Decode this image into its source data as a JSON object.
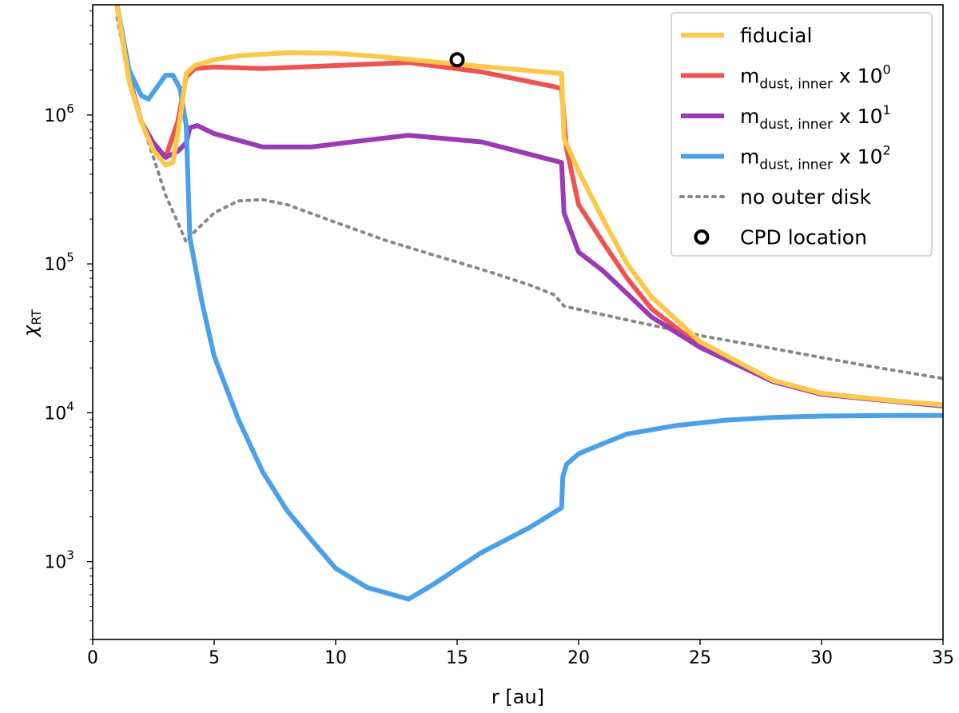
{
  "chart_data": {
    "type": "line",
    "xlabel": "r [au]",
    "ylabel_base": "χ",
    "ylabel_sub": "RT",
    "yscale": "log",
    "xlim": [
      0,
      35
    ],
    "ylim": [
      300,
      5500000
    ],
    "x_ticks": [
      0,
      5,
      10,
      15,
      20,
      25,
      30,
      35
    ],
    "x_tick_labels": [
      "0",
      "5",
      "10",
      "15",
      "20",
      "25",
      "30",
      "35"
    ],
    "y_ticks": [
      {
        "value": 1000,
        "base": "10",
        "exp": "3"
      },
      {
        "value": 10000,
        "base": "10",
        "exp": "4"
      },
      {
        "value": 100000,
        "base": "10",
        "exp": "5"
      },
      {
        "value": 1000000,
        "base": "10",
        "exp": "6"
      }
    ],
    "legend_position": "upper-right",
    "series": [
      {
        "name": "no outer disk",
        "label_main": "no outer disk",
        "color": "#888888",
        "style": "dotted",
        "x": [
          1.0,
          1.5,
          2.0,
          2.5,
          3.0,
          3.5,
          3.85,
          4.2,
          5.0,
          6.0,
          7.0,
          8.0,
          10.0,
          12.0,
          14.0,
          16.0,
          18.0,
          19.0,
          19.4,
          22.0,
          25.0,
          28.0,
          30.0,
          32.0,
          35.0
        ],
        "y": [
          4500000,
          1800000,
          900000,
          520000,
          290000,
          190000,
          140000,
          165000,
          220000,
          265000,
          270000,
          250000,
          190000,
          145000,
          115000,
          92000,
          72000,
          62000,
          52000,
          42000,
          33000,
          27000,
          23500,
          20500,
          17000
        ]
      },
      {
        "name": "m_dust,inner x 10^0",
        "label_main": "m",
        "label_sub": "dust, inner",
        "label_mid": " x 10",
        "label_sup": "0",
        "color": "#ee5350",
        "style": "solid",
        "x": [
          1.0,
          1.5,
          2.0,
          2.5,
          3.0,
          3.5,
          3.85,
          4.2,
          5.0,
          7.0,
          10.0,
          13.0,
          16.0,
          19.0,
          19.3,
          19.5,
          20.0,
          21.0,
          22.0,
          23.0,
          25.0,
          28.0,
          30.0,
          33.0,
          35.0
        ],
        "y": [
          5500000,
          1700000,
          900000,
          620000,
          520000,
          900000,
          1800000,
          2050000,
          2100000,
          2050000,
          2150000,
          2250000,
          1950000,
          1550000,
          1500000,
          600000,
          250000,
          140000,
          80000,
          50000,
          28000,
          16500,
          13500,
          12000,
          11300
        ]
      },
      {
        "name": "m_dust,inner x 10^1",
        "label_main": "m",
        "label_sub": "dust, inner",
        "label_mid": " x 10",
        "label_sup": "1",
        "color": "#9a3bb5",
        "style": "solid",
        "x": [
          1.0,
          1.5,
          2.0,
          2.5,
          3.0,
          3.5,
          3.85,
          4.0,
          4.3,
          5.0,
          7.0,
          9.0,
          11.0,
          13.0,
          16.0,
          19.3,
          19.4,
          20.0,
          21.0,
          22.0,
          23.0,
          25.0,
          28.0,
          30.0,
          33.0,
          35.0
        ],
        "y": [
          5500000,
          1800000,
          900000,
          650000,
          520000,
          570000,
          650000,
          820000,
          850000,
          750000,
          610000,
          610000,
          670000,
          730000,
          660000,
          480000,
          220000,
          120000,
          90000,
          63000,
          44000,
          27500,
          16200,
          13300,
          11900,
          11100
        ]
      },
      {
        "name": "m_dust,inner x 10^2",
        "label_main": "m",
        "label_sub": "dust, inner",
        "label_mid": " x 10",
        "label_sup": "2",
        "color": "#4ba0ea",
        "style": "solid",
        "x": [
          1.0,
          1.5,
          2.0,
          2.3,
          2.6,
          3.0,
          3.3,
          3.6,
          3.85,
          4.0,
          4.5,
          5.0,
          6.0,
          7.0,
          8.0,
          9.0,
          10.0,
          11.3,
          13.0,
          14.0,
          16.0,
          18.0,
          19.3,
          19.35,
          19.5,
          20.0,
          21.0,
          22.0,
          24.0,
          26.0,
          28.0,
          30.0,
          33.0,
          35.0
        ],
        "y": [
          5500000,
          2000000,
          1350000,
          1280000,
          1500000,
          1850000,
          1850000,
          1500000,
          850000,
          150000,
          55000,
          24000,
          9000,
          4000,
          2200,
          1400,
          900,
          670,
          560,
          700,
          1150,
          1700,
          2300,
          3700,
          4500,
          5300,
          6200,
          7200,
          8200,
          8900,
          9300,
          9500,
          9600,
          9600
        ]
      },
      {
        "name": "fiducial",
        "label_main": "fiducial",
        "color": "#fbc84a",
        "style": "solid",
        "x": [
          1.0,
          1.5,
          2.0,
          2.5,
          3.0,
          3.3,
          3.6,
          3.85,
          4.2,
          5.0,
          6.0,
          8.0,
          10.0,
          12.0,
          15.0,
          17.0,
          19.3,
          19.4,
          20.0,
          21.0,
          22.0,
          23.0,
          25.0,
          28.0,
          30.0,
          33.0,
          35.0
        ],
        "y": [
          5500000,
          1700000,
          900000,
          580000,
          460000,
          480000,
          950000,
          1900000,
          2150000,
          2350000,
          2500000,
          2620000,
          2600000,
          2450000,
          2200000,
          2050000,
          1900000,
          700000,
          420000,
          200000,
          100000,
          60000,
          30000,
          16500,
          13500,
          12000,
          11300
        ]
      }
    ],
    "marker": {
      "name": "CPD location",
      "label_main": "CPD location",
      "x": 15.0,
      "y": 2350000,
      "face": "#ffffff",
      "edge": "#000000"
    },
    "legend_order": [
      4,
      1,
      2,
      3,
      0,
      "marker"
    ]
  }
}
